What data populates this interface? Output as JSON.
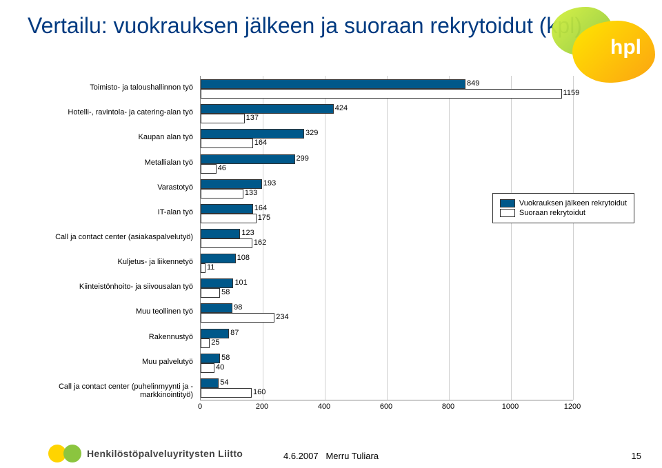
{
  "title": "Vertailu: vuokrauksen jälkeen ja suoraan rekrytoidut (kpl)",
  "chart": {
    "type": "bar-horizontal-grouped",
    "categories": [
      "Toimisto- ja taloushallinnon työ",
      "Hotelli-, ravintola- ja catering-alan työ",
      "Kaupan alan työ",
      "Metallialan työ",
      "Varastotyö",
      "IT-alan työ",
      "Call ja contact center (asiakaspalvelutyö)",
      "Kuljetus- ja liikennetyö",
      "Kiinteistönhoito- ja siivousalan työ",
      "Muu teollinen työ",
      "Rakennustyö",
      "Muu palvelutyö",
      "Call ja contact center (puhelinmyynti ja - markkinointityö)"
    ],
    "series": [
      {
        "name": "Vuokrauksen jälkeen rekrytoidut",
        "color": "#00588a",
        "values": [
          849,
          424,
          329,
          299,
          193,
          164,
          123,
          108,
          101,
          98,
          87,
          58,
          54
        ]
      },
      {
        "name": "Suoraan rekrytoidut",
        "color": "#ffffff",
        "values": [
          1159,
          137,
          164,
          46,
          133,
          175,
          162,
          11,
          58,
          234,
          25,
          40,
          160
        ]
      }
    ],
    "xlim": [
      0,
      1200
    ],
    "xtick_step": 200,
    "xticks": [
      0,
      200,
      400,
      600,
      800,
      1000,
      1200
    ],
    "grid_color": "#d0d0d0",
    "background_color": "#ffffff",
    "bar_colors": [
      "#00588a",
      "#ffffff"
    ],
    "bar_border": "#333333",
    "label_fontsize": 11,
    "legend_position": "right-middle"
  },
  "legend": {
    "items": [
      "Vuokrauksen jälkeen rekrytoidut",
      "Suoraan rekrytoidut"
    ]
  },
  "footer": {
    "org": "Henkilöstöpalveluyritysten Liitto",
    "date": "4.6.2007",
    "author": "Merru Tuliara",
    "page": "15"
  },
  "logo_text": "hpl"
}
